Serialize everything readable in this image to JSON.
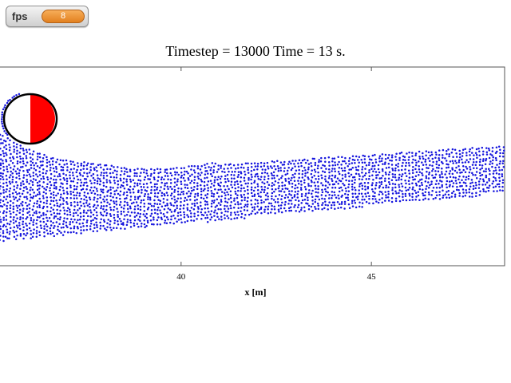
{
  "fps_widget": {
    "label": "fps",
    "value": "8"
  },
  "plot": {
    "title": "Timestep = 13000 Time = 13 s.",
    "xlabel": "x [m]",
    "xlim": [
      35.2,
      48.5
    ],
    "xticks": [
      {
        "value": 40,
        "label": "40"
      },
      {
        "value": 45,
        "label": "45"
      }
    ],
    "colors": {
      "particles": "#1414dd",
      "cylinder_left": "#ffffff",
      "cylinder_right": "#ff0000",
      "frame": "#555555"
    }
  }
}
